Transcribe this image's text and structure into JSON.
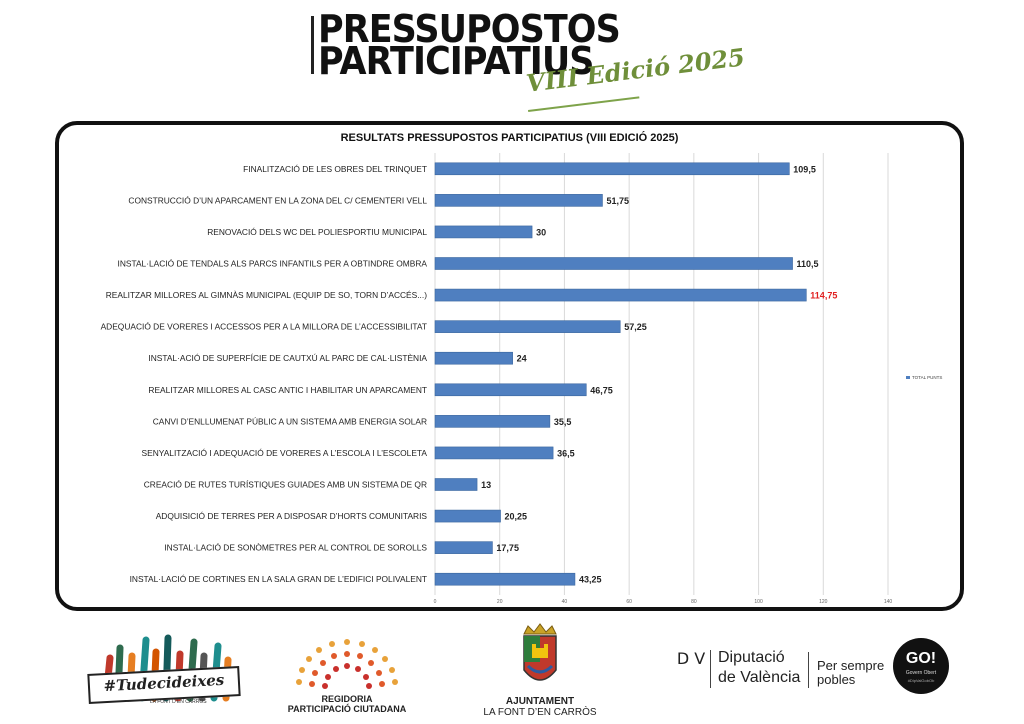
{
  "header": {
    "title_line1": "PRESSUPOSTOS",
    "title_line2": "PARTICIPATIUS",
    "edition": "VIII Edició 2025"
  },
  "chart_data": {
    "type": "bar",
    "orientation": "horizontal",
    "title": "RESULTATS PRESSUPOSTOS PARTICIPATIUS (VIII EDICIÓ 2025)",
    "categories": [
      "FINALITZACIÓ DE LES OBRES DEL TRINQUET",
      "CONSTRUCCIÓ D’UN APARCAMENT EN LA ZONA DEL C/ CEMENTERI VELL",
      "RENOVACIÓ DELS WC DEL POLIESPORTIU MUNICIPAL",
      "INSTAL·LACIÓ DE TENDALS ALS PARCS INFANTILS PER A OBTINDRE OMBRA",
      "REALITZAR MILLORES AL GIMNÀS MUNICIPAL (EQUIP DE SO, TORN D’ACCÉS...)",
      "ADEQUACIÓ DE VORERES I ACCESSOS PER A LA MILLORA DE L’ACCESSIBILITAT",
      "INSTAL·ACIÓ DE SUPERFÍCIE DE CAUTXÚ AL PARC DE CAL·LISTÈNIA",
      "REALITZAR MILLORES AL CASC ANTIC I HABILITAR UN APARCAMENT",
      "CANVI D’ENLLUMENAT PÚBLIC A UN SISTEMA AMB ENERGIA SOLAR",
      "SENYALITZACIÓ I ADEQUACIÓ DE VORERES A L’ESCOLA I L’ESCOLETA",
      "CREACIÓ DE RUTES TURÍSTIQUES GUIADES AMB UN SISTEMA DE QR",
      "ADQUISICIÓ DE TERRES PER A DISPOSAR D’HORTS COMUNITARIS",
      "INSTAL·LACIÓ DE SONÒMETRES PER AL CONTROL DE SOROLLS",
      "INSTAL·LACIÓ DE CORTINES EN LA SALA GRAN DE L’EDIFICI POLIVALENT"
    ],
    "series": [
      {
        "name": "TOTAL PUNTS",
        "values": [
          109.5,
          51.75,
          30,
          110.5,
          114.75,
          57.25,
          24,
          46.75,
          35.5,
          36.5,
          13,
          20.25,
          17.75,
          43.25
        ]
      }
    ],
    "value_labels": [
      "109,5",
      "51,75",
      "30",
      "110,5",
      "114,75",
      "57,25",
      "24",
      "46,75",
      "35,5",
      "36,5",
      "13",
      "20,25",
      "17,75",
      "43,25"
    ],
    "highlight_index": 4,
    "xlim": [
      0,
      140
    ],
    "xticks": [
      0,
      20,
      40,
      60,
      80,
      100,
      120,
      140
    ],
    "grid": true,
    "legend_position": "right",
    "colors": {
      "bar": "#4f7fc0",
      "bar_edge": "#3c679f",
      "highlight_label": "#e02020",
      "grid": "#d9d9d9"
    }
  },
  "footer": {
    "hashtag": "#Tudecideixes",
    "hashtag_sub": "LA FONT D’EN CARRÒS",
    "regidoria_line1": "REGIDORIA",
    "regidoria_line2": "PARTICIPACIÓ CIUTADANA",
    "ajuntament_line1": "AJUNTAMENT",
    "ajuntament_line2": "LA FONT D’EN CARRÒS",
    "diputacio_line1": "Diputació",
    "diputacio_line2": "de València",
    "slogan_line1": "Per sempre",
    "slogan_line2": "pobles",
    "go_title": "GO!",
    "go_sub": "Govern Obert",
    "go_tag": "#DipValGobOb",
    "dv_mark": "D V"
  }
}
